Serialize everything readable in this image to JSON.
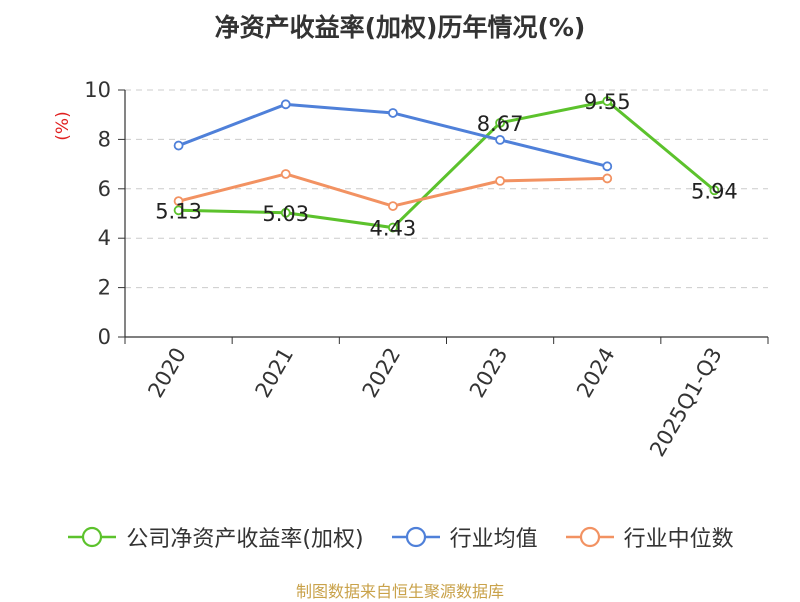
{
  "chart_data": {
    "type": "line",
    "title": "净资产收益率(加权)历年情况(%)",
    "ylabel": "(%)",
    "xlabel": "",
    "categories": [
      "2020",
      "2021",
      "2022",
      "2023",
      "2024",
      "2025Q1-Q3"
    ],
    "ylim": [
      0,
      10
    ],
    "yticks": [
      0,
      2,
      4,
      6,
      8,
      10
    ],
    "grid": true,
    "legend_position": "bottom",
    "series": [
      {
        "name": "公司净资产收益率(加权)",
        "color": "#5cc22c",
        "values": [
          5.13,
          5.03,
          4.43,
          8.67,
          9.55,
          5.94
        ],
        "labels": [
          "5.13",
          "5.03",
          "4.43",
          "8.67",
          "9.55",
          "5.94"
        ]
      },
      {
        "name": "行业均值",
        "color": "#4f80d9",
        "values": [
          7.75,
          9.42,
          9.07,
          7.98,
          6.91,
          null
        ]
      },
      {
        "name": "行业中位数",
        "color": "#f29262",
        "values": [
          5.5,
          6.6,
          5.3,
          6.32,
          6.42,
          null
        ]
      }
    ]
  },
  "source_note": "制图数据来自恒生聚源数据库"
}
